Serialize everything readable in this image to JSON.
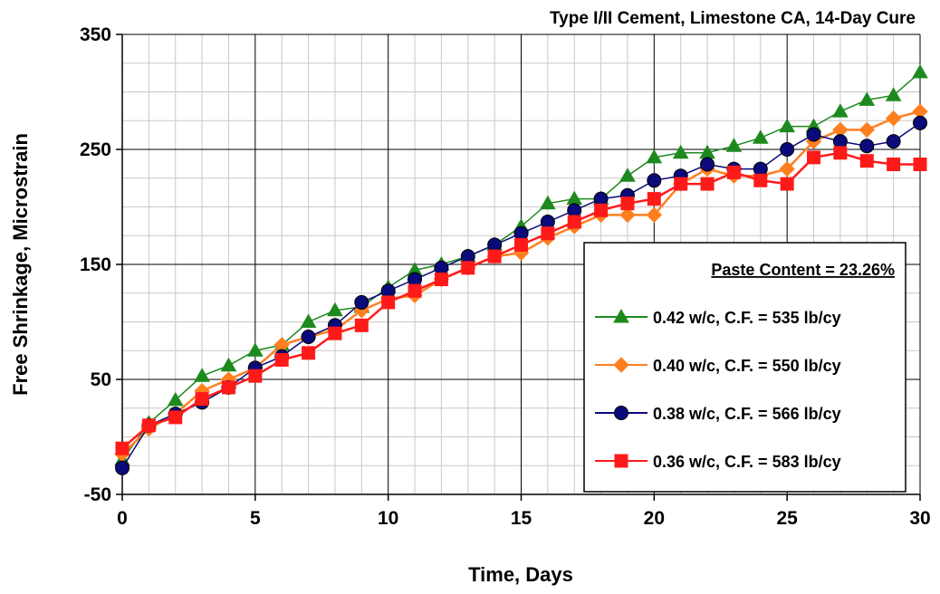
{
  "chart_data": {
    "type": "line",
    "title": "Type I/II Cement, Limestone CA, 14-Day Cure",
    "xlabel": "Time, Days",
    "ylabel": "Free Shrinkage, Microstrain",
    "xlim": [
      0,
      30
    ],
    "ylim": [
      -50,
      350
    ],
    "x_ticks": [
      "0",
      "5",
      "10",
      "15",
      "20",
      "25",
      "30"
    ],
    "y_ticks": [
      "-50",
      "50",
      "150",
      "250",
      "350"
    ],
    "grid": true,
    "legend": {
      "title": "Paste Content = 23.26%",
      "placement": "bottom-right"
    },
    "series": [
      {
        "name": "0.42 w/c, C.F. = 535 lb/cy",
        "color": "#1e8a1e",
        "marker": "triangle",
        "x": [
          0,
          1,
          2,
          3,
          4,
          5,
          6,
          7,
          8,
          9,
          10,
          11,
          12,
          13,
          14,
          15,
          16,
          17,
          18,
          19,
          20,
          21,
          22,
          23,
          24,
          25,
          26,
          27,
          28,
          29,
          30
        ],
        "values": [
          -20,
          12,
          32,
          53,
          62,
          75,
          80,
          100,
          110,
          113,
          130,
          145,
          150,
          157,
          167,
          183,
          203,
          207,
          207,
          227,
          243,
          247,
          247,
          253,
          260,
          270,
          270,
          283,
          293,
          297,
          317
        ]
      },
      {
        "name": "0.40 w/c, C.F. = 550 lb/cy",
        "color": "#ff7f1f",
        "marker": "diamond",
        "x": [
          0,
          1,
          2,
          3,
          4,
          5,
          6,
          7,
          8,
          9,
          10,
          11,
          12,
          13,
          14,
          15,
          16,
          17,
          18,
          19,
          20,
          21,
          22,
          23,
          24,
          25,
          26,
          27,
          28,
          29,
          30
        ],
        "values": [
          -15,
          7,
          20,
          40,
          50,
          60,
          80,
          87,
          93,
          110,
          120,
          123,
          137,
          147,
          157,
          160,
          173,
          183,
          193,
          193,
          193,
          220,
          233,
          227,
          227,
          233,
          257,
          267,
          267,
          277,
          283
        ]
      },
      {
        "name": "0.38 w/c, C.F. = 566 lb/cy",
        "color": "#0a0a7a",
        "marker": "circle",
        "x": [
          0,
          1,
          2,
          3,
          4,
          5,
          6,
          7,
          8,
          9,
          10,
          11,
          12,
          13,
          14,
          15,
          16,
          17,
          18,
          19,
          20,
          21,
          22,
          23,
          24,
          25,
          26,
          27,
          28,
          29,
          30
        ],
        "values": [
          -27,
          10,
          20,
          30,
          43,
          60,
          70,
          87,
          97,
          117,
          127,
          137,
          147,
          157,
          167,
          177,
          187,
          197,
          207,
          210,
          223,
          227,
          237,
          233,
          233,
          250,
          263,
          257,
          253,
          257,
          273
        ]
      },
      {
        "name": "0.36 w/c, C.F. = 583 lb/cy",
        "color": "#ff1a1a",
        "marker": "square",
        "x": [
          0,
          1,
          2,
          3,
          4,
          5,
          6,
          7,
          8,
          9,
          10,
          11,
          12,
          13,
          14,
          15,
          16,
          17,
          18,
          19,
          20,
          21,
          22,
          23,
          24,
          25,
          26,
          27,
          28,
          29,
          30
        ],
        "values": [
          -10,
          10,
          17,
          33,
          43,
          53,
          67,
          73,
          90,
          97,
          117,
          127,
          137,
          147,
          157,
          167,
          177,
          187,
          197,
          203,
          207,
          220,
          220,
          230,
          223,
          220,
          243,
          247,
          240,
          237,
          237
        ]
      }
    ]
  }
}
